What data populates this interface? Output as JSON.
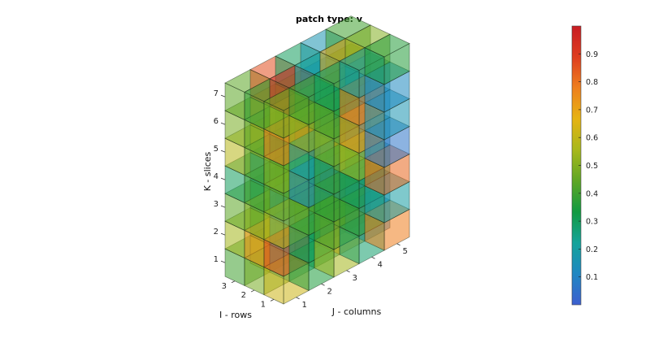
{
  "chart_data": {
    "type": "heatmap",
    "subtype": "3d-voxel-patch",
    "title": "patch type: v",
    "xlabel": "J - columns",
    "ylabel": "I - rows",
    "zlabel": "K - slices",
    "x_ticks": [
      "1",
      "2",
      "3",
      "4",
      "5"
    ],
    "y_ticks": [
      "1",
      "2",
      "3"
    ],
    "z_ticks": [
      "1",
      "2",
      "3",
      "4",
      "5",
      "6",
      "7"
    ],
    "dims": {
      "columns": 5,
      "rows": 3,
      "slices": 7
    },
    "face_alpha": 0.55,
    "colorbar": {
      "colormap": "turbo-like",
      "clim": [
        0,
        1
      ],
      "ticks": [
        "0.1",
        "0.2",
        "0.3",
        "0.4",
        "0.5",
        "0.6",
        "0.7",
        "0.8",
        "0.9"
      ],
      "colors": [
        "#3d5fcf",
        "#1f87c2",
        "#14a39a",
        "#129a41",
        "#5ea624",
        "#a8b81c",
        "#e6b312",
        "#ee7f1e",
        "#de3d1f",
        "#c81c23"
      ]
    },
    "values_by_slice_row_column": [
      [
        [
          0.62,
          0.35,
          0.55,
          0.28,
          0.78
        ],
        [
          0.48,
          0.22,
          0.3,
          0.72,
          0.1
        ],
        [
          0.4,
          0.58,
          0.66,
          0.18,
          0.84
        ]
      ],
      [
        [
          0.86,
          0.3,
          0.42,
          0.38,
          0.2
        ],
        [
          0.74,
          0.18,
          0.34,
          0.46,
          0.12
        ],
        [
          0.55,
          0.4,
          0.12,
          0.62,
          0.8
        ]
      ],
      [
        [
          0.58,
          0.42,
          0.36,
          0.3,
          0.82
        ],
        [
          0.5,
          0.16,
          0.4,
          0.08,
          0.3
        ],
        [
          0.44,
          0.28,
          0.32,
          0.5,
          0.2
        ]
      ],
      [
        [
          0.46,
          0.12,
          0.38,
          0.56,
          0.06
        ],
        [
          0.4,
          0.42,
          0.34,
          0.62,
          0.12
        ],
        [
          0.3,
          0.2,
          0.44,
          0.16,
          0.04
        ]
      ],
      [
        [
          0.5,
          0.22,
          0.48,
          0.74,
          0.16
        ],
        [
          0.42,
          0.36,
          0.82,
          0.3,
          0.1
        ],
        [
          0.58,
          0.64,
          0.4,
          0.22,
          0.06
        ]
      ],
      [
        [
          0.78,
          0.52,
          0.4,
          0.78,
          0.12
        ],
        [
          0.44,
          0.64,
          0.38,
          0.32,
          0.18
        ],
        [
          0.48,
          0.7,
          0.56,
          0.12,
          0.44
        ]
      ],
      [
        [
          0.46,
          0.4,
          0.3,
          0.2,
          0.36
        ],
        [
          0.38,
          0.96,
          0.22,
          0.7,
          0.5
        ],
        [
          0.44,
          0.86,
          0.3,
          0.16,
          0.4
        ]
      ]
    ]
  }
}
